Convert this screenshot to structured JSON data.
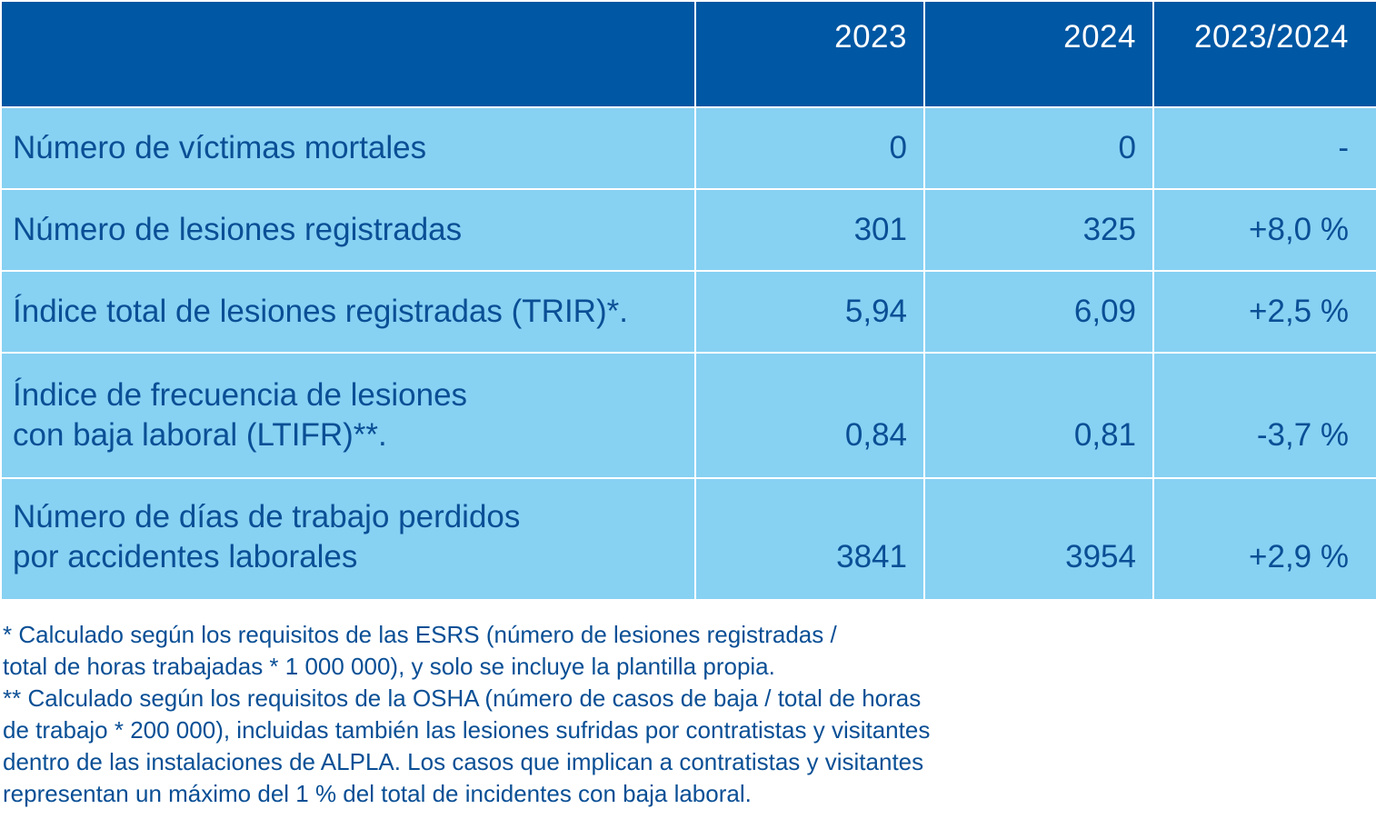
{
  "table": {
    "header": {
      "corner": "",
      "col_2023": "2023",
      "col_2024": "2024",
      "col_ratio": "2023/2024"
    },
    "rows": [
      {
        "label": "Número de víctimas mortales",
        "label_line2": "",
        "v2023": "0",
        "v2024": "0",
        "ratio": "-"
      },
      {
        "label": "Número de lesiones registradas",
        "label_line2": "",
        "v2023": "301",
        "v2024": "325",
        "ratio": "+8,0 %"
      },
      {
        "label": "Índice total de lesiones registradas (TRIR)*.",
        "label_line2": "",
        "v2023": "5,94",
        "v2024": "6,09",
        "ratio": "+2,5 %"
      },
      {
        "label": "Índice de frecuencia de lesiones",
        "label_line2": "con baja laboral (LTIFR)**.",
        "v2023": "0,84",
        "v2024": "0,81",
        "ratio": "-3,7 %"
      },
      {
        "label": "Número de días de trabajo perdidos",
        "label_line2": "por accidentes laborales",
        "v2023": "3841",
        "v2024": "3954",
        "ratio": "+2,9 %"
      }
    ]
  },
  "footnotes": {
    "note1_line1": "* Calculado según los requisitos de las ESRS (número de lesiones registradas /",
    "note1_line2": "total de horas trabajadas * 1 000 000), y solo se incluye la plantilla propia.",
    "note2_line1": "** Calculado según los requisitos de la OSHA (número de casos de baja / total de horas",
    "note2_line2": "de trabajo * 200 000), incluidas también las lesiones sufridas por contratistas y visitantes",
    "note2_line3": "dentro de las instalaciones de ALPLA. Los casos que implican a contratistas y visitantes",
    "note2_line4": "representan un máximo del 1 % del total de incidentes con baja laboral."
  },
  "colors": {
    "header_bg": "#0057a3",
    "row_bg": "#87d1f3",
    "text_dark_blue": "#0a4f95",
    "header_text": "#ffffff"
  }
}
